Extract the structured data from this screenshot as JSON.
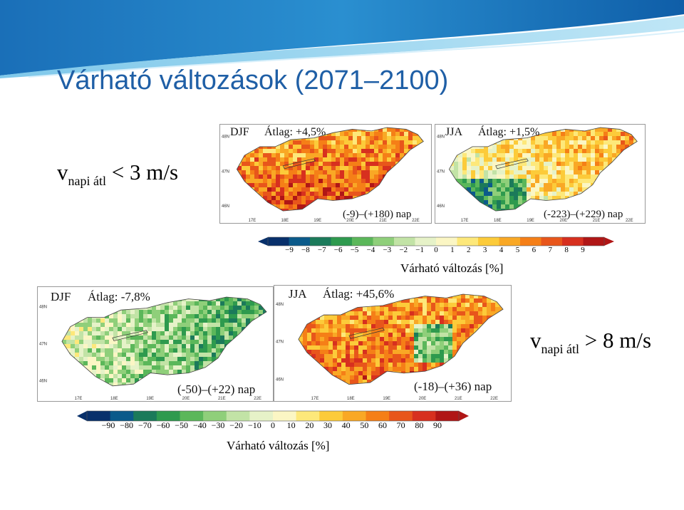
{
  "slide": {
    "title": "Várható változások (2071–2100)",
    "condition_low": {
      "v": "v",
      "sub": "napi átl",
      "rest": "< 3 m/s"
    },
    "condition_high": {
      "v": "v",
      "sub": "napi átl",
      "rest": "> 8 m/s"
    }
  },
  "top_panels": [
    {
      "season": "DJF",
      "avg": "Átlag: +4,5%",
      "range": "(-9)–(+180) nap"
    },
    {
      "season": "JJA",
      "avg": "Átlag: +1,5%",
      "range": "(-223)–(+229) nap"
    }
  ],
  "bottom_panels": [
    {
      "season": "DJF",
      "avg": "Átlag: -7,8%",
      "range": "(-50)–(+22) nap"
    },
    {
      "season": "JJA",
      "avg": "Átlag: +45,6%",
      "range": "(-18)–(+36) nap"
    }
  ],
  "axis_ticks": {
    "lat": [
      "48N",
      "47N",
      "46N"
    ],
    "lon": [
      "17E",
      "18E",
      "19E",
      "20E",
      "21E",
      "22E"
    ]
  },
  "colorbar_top": {
    "ticks": [
      "−9",
      "−8",
      "−7",
      "−6",
      "−5",
      "−4",
      "−3",
      "−2",
      "−1",
      "0",
      "1",
      "2",
      "3",
      "4",
      "5",
      "6",
      "7",
      "8",
      "9"
    ],
    "caption": "Várható változás [%]"
  },
  "colorbar_bottom": {
    "ticks": [
      "−90",
      "−80",
      "−70",
      "−60",
      "−50",
      "−40",
      "−30",
      "−20",
      "−10",
      "0",
      "10",
      "20",
      "30",
      "40",
      "50",
      "60",
      "70",
      "80",
      "90"
    ],
    "caption": "Várható változás [%]"
  },
  "colors": {
    "title": "#1f5fa6",
    "scale": [
      "#08306b",
      "#0b5a8a",
      "#1b7a5a",
      "#2e9a4e",
      "#5bb75a",
      "#8fcf7a",
      "#c2e3a6",
      "#e6f2c8",
      "#fbf6c4",
      "#fde87a",
      "#fccb3a",
      "#f9a825",
      "#f57f17",
      "#e8561b",
      "#d7301f",
      "#b01616"
    ]
  }
}
